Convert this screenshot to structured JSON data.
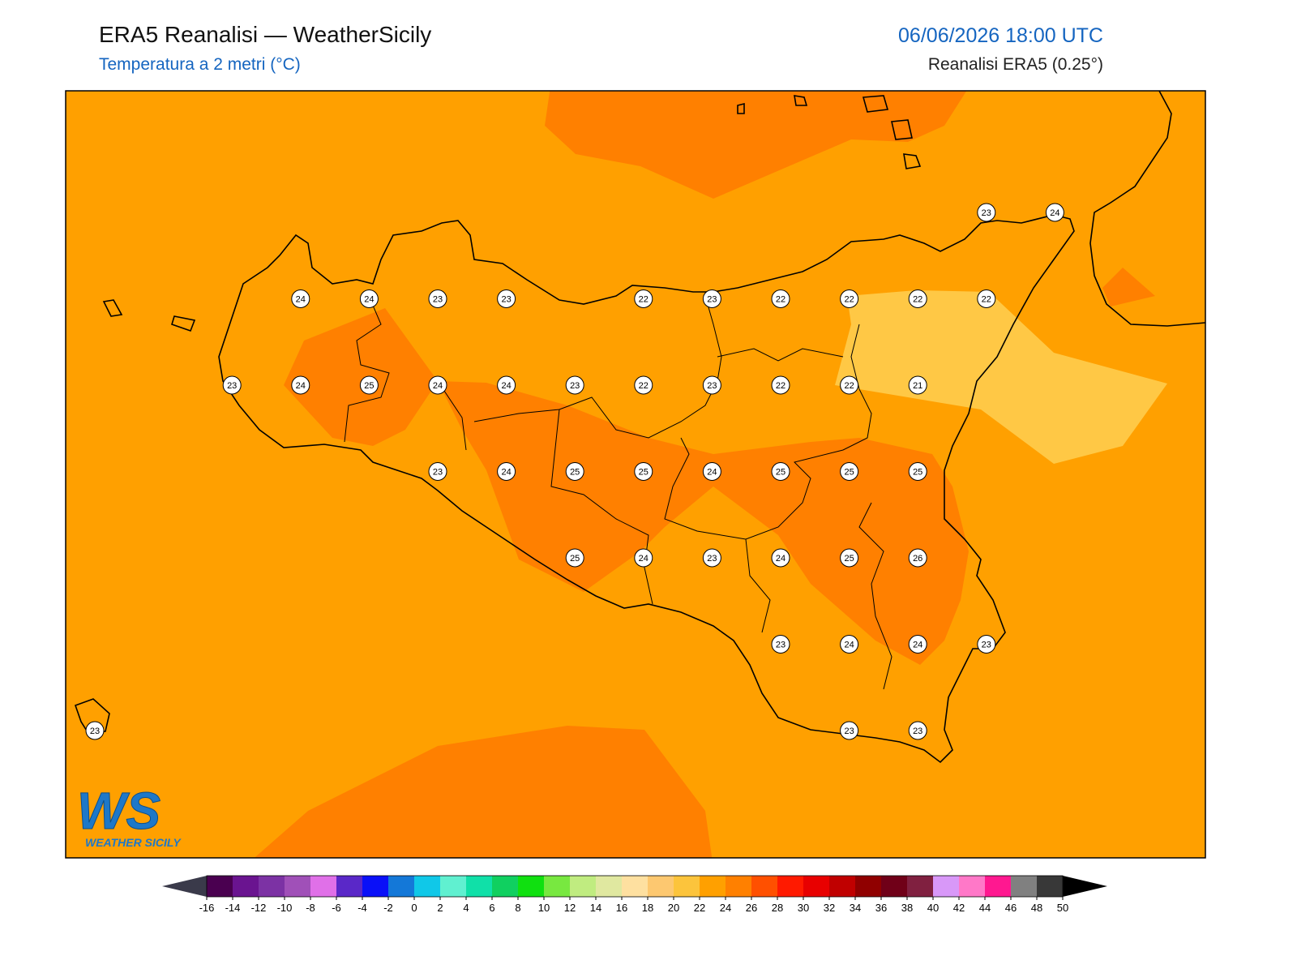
{
  "header": {
    "title": "ERA5 Reanalisi — WeatherSicily",
    "subtitle": "Temperatura a 2 metri (°C)",
    "datetime": "06/06/2026 18:00 UTC",
    "source": "Reanalisi ERA5 (0.25°)"
  },
  "stations": {
    "values": [
      23,
      24,
      24,
      24,
      23,
      23,
      22,
      23,
      22,
      22,
      22,
      22,
      23,
      24,
      25,
      24,
      24,
      23,
      22,
      23,
      22,
      22,
      21,
      23,
      24,
      25,
      25,
      24,
      25,
      25,
      25,
      25,
      24,
      23,
      24,
      25,
      26,
      23,
      24,
      24,
      23,
      23,
      23,
      23
    ]
  },
  "colorbar": {
    "ticks": [
      -16,
      -14,
      -12,
      -10,
      -8,
      -6,
      -4,
      -2,
      0,
      2,
      4,
      6,
      8,
      10,
      12,
      14,
      16,
      18,
      20,
      22,
      24,
      26,
      28,
      30,
      32,
      34,
      36,
      38,
      40,
      42,
      44,
      46,
      48,
      50
    ],
    "colors": [
      "#4a0050",
      "#6a1490",
      "#7c32a4",
      "#a050b8",
      "#e070e8",
      "#5a28c8",
      "#0a10f8",
      "#1478d8",
      "#10c8e8",
      "#60f0d0",
      "#10e0a8",
      "#10d060",
      "#10e010",
      "#78e840",
      "#c0ec80",
      "#e0e8a0",
      "#fee0a0",
      "#fdc870",
      "#fcc43c",
      "#ffa000",
      "#ff8000",
      "#ff5000",
      "#ff1a00",
      "#e80000",
      "#c00000",
      "#900000",
      "#700018",
      "#802040",
      "#d898f8",
      "#ff78c8",
      "#ff1890",
      "#808080",
      "#383838"
    ],
    "under": "#3a3a4a",
    "over": "#000000"
  },
  "logo": {
    "mark": "WS",
    "text": "WEATHER SICILY"
  }
}
